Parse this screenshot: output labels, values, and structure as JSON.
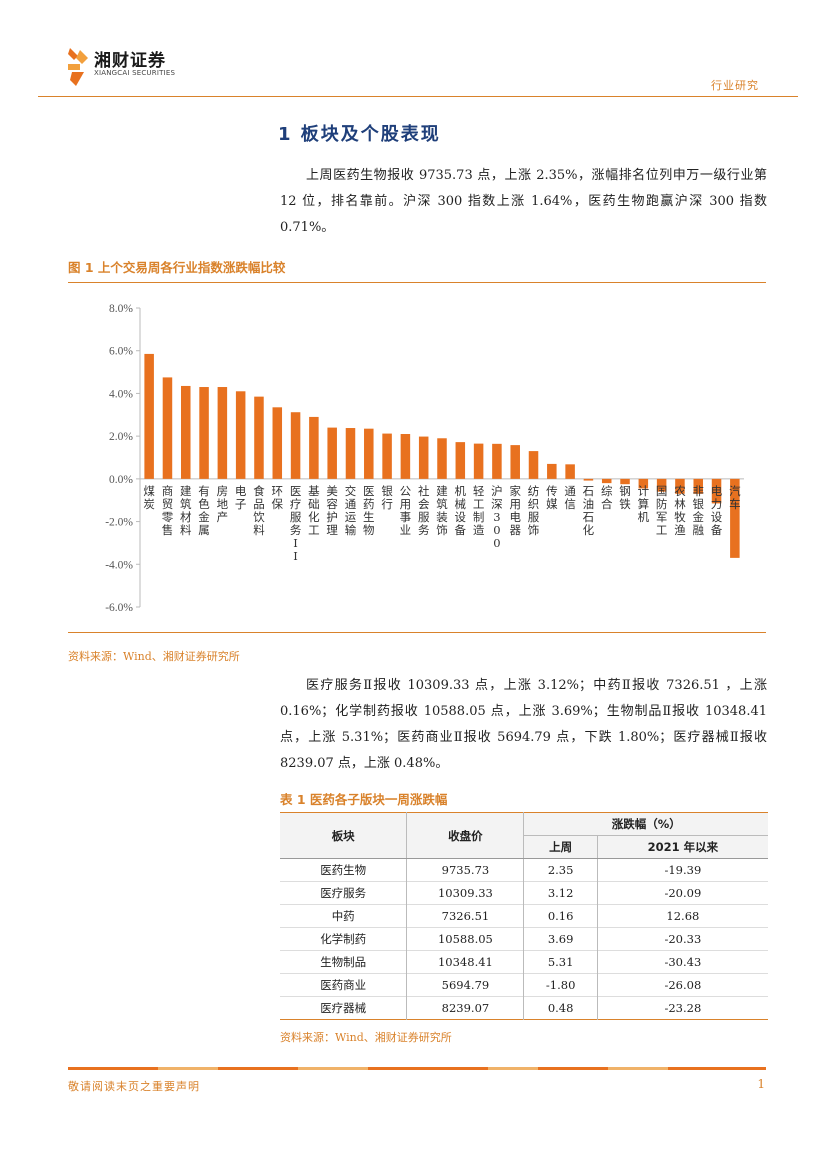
{
  "header": {
    "logo_cn": "湘财证券",
    "logo_en": "XIANGCAI SECURITIES",
    "category": "行业研究",
    "accent": "#d9822b"
  },
  "section_title": "1 板块及个股表现",
  "para1": "上周医药生物报收 9735.73 点，上涨 2.35%，涨幅排名位列申万一级行业第 12 位，排名靠前。沪深 300 指数上涨 1.64%，医药生物跑赢沪深 300 指数 0.71%。",
  "figure": {
    "title": "图 1 上个交易周各行业指数涨跌幅比较",
    "source": "资料来源：Wind、湘财证券研究所"
  },
  "chart_data": {
    "type": "bar",
    "categories": [
      "煤炭",
      "商贸零售",
      "建筑材料",
      "有色金属",
      "房地产",
      "电子",
      "食品饮料",
      "环保",
      "医疗服务II",
      "基础化工",
      "美容护理",
      "交通运输",
      "医药生物",
      "银行",
      "公用事业",
      "社会服务",
      "建筑装饰",
      "机械设备",
      "轻工制造",
      "沪深300",
      "家用电器",
      "纺织服饰",
      "传媒",
      "通信",
      "石油石化",
      "综合",
      "钢铁",
      "计算机",
      "国防军工",
      "农林牧渔",
      "非银金融",
      "电力设备",
      "汽车"
    ],
    "values": [
      5.85,
      4.75,
      4.35,
      4.3,
      4.3,
      4.1,
      3.85,
      3.35,
      3.12,
      2.9,
      2.4,
      2.38,
      2.35,
      2.12,
      2.1,
      1.98,
      1.9,
      1.72,
      1.65,
      1.64,
      1.58,
      1.3,
      0.7,
      0.68,
      -0.08,
      -0.2,
      -0.25,
      -0.45,
      -0.6,
      -0.7,
      -0.7,
      -1.15,
      -3.7
    ],
    "ylim": [
      -6,
      8
    ],
    "yticks": [
      "-6.0%",
      "-4.0%",
      "-2.0%",
      "0.0%",
      "2.0%",
      "4.0%",
      "6.0%",
      "8.0%"
    ],
    "ytick_values": [
      -6,
      -4,
      -2,
      0,
      2,
      4,
      6,
      8
    ],
    "bar_color": "#e8711f",
    "grid": false
  },
  "para2": "医疗服务Ⅱ报收 10309.33 点，上涨 3.12%；中药Ⅱ报收 7326.51 ，上涨 0.16%；化学制药报收 10588.05 点，上涨 3.69%；生物制品Ⅱ报收 10348.41 点，上涨 5.31%；医药商业Ⅱ报收 5694.79 点，下跌 1.80%；医疗器械Ⅱ报收 8239.07 点，上涨 0.48%。",
  "table": {
    "title": "表 1 医药各子版块一周涨跌幅",
    "headers": {
      "sector": "板块",
      "close": "收盘价",
      "change": "涨跌幅（%）",
      "last_week": "上周",
      "ytd": "2021 年以来"
    },
    "rows": [
      [
        "医药生物",
        "9735.73",
        "2.35",
        "-19.39"
      ],
      [
        "医疗服务",
        "10309.33",
        "3.12",
        "-20.09"
      ],
      [
        "中药",
        "7326.51",
        "0.16",
        "12.68"
      ],
      [
        "化学制药",
        "10588.05",
        "3.69",
        "-20.33"
      ],
      [
        "生物制品",
        "10348.41",
        "5.31",
        "-30.43"
      ],
      [
        "医药商业",
        "5694.79",
        "-1.80",
        "-26.08"
      ],
      [
        "医疗器械",
        "8239.07",
        "0.48",
        "-23.28"
      ]
    ],
    "source": "资料来源：Wind、湘财证券研究所"
  },
  "footer": {
    "disclaimer": "敬请阅读末页之重要声明",
    "page": "1"
  }
}
